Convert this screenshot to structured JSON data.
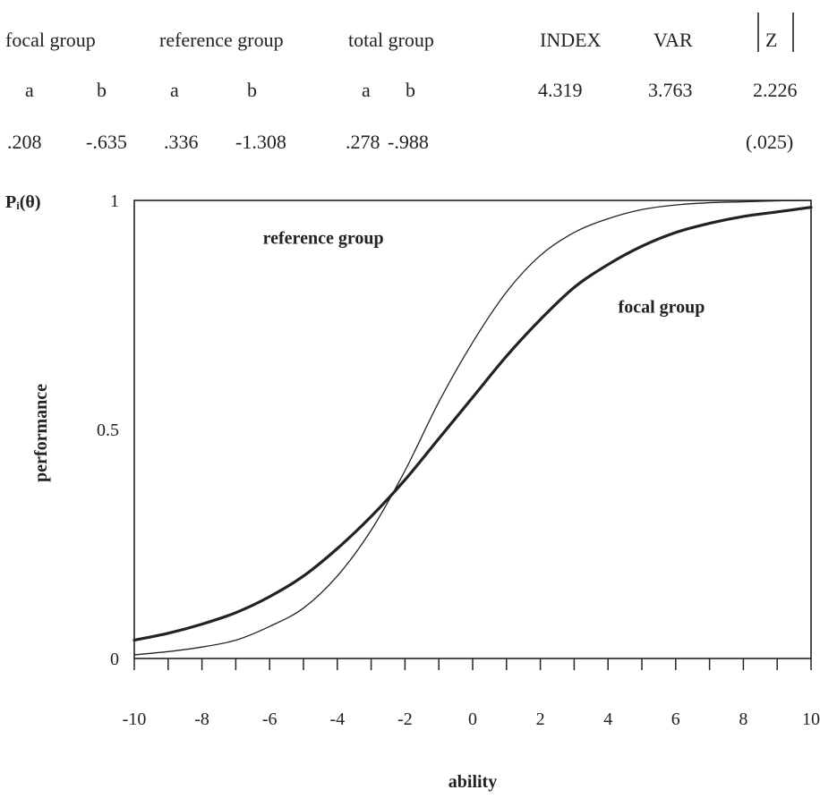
{
  "stats_table": {
    "group_headers": {
      "focal": "focal group",
      "reference": "reference group",
      "total": "total group"
    },
    "stat_headers": {
      "index": "INDEX",
      "var": "VAR",
      "z": "Z"
    },
    "param_labels": {
      "focal_a": "a",
      "focal_b": "b",
      "reference_a": "a",
      "reference_b": "b",
      "total_a": "a",
      "total_b": "b"
    },
    "param_values": {
      "focal_a": ".208",
      "focal_b": "-.635",
      "reference_a": ".336",
      "reference_b": "-1.308",
      "total_a": ".278",
      "total_b": "-.988"
    },
    "stat_values": {
      "index": "4.319",
      "var": "3.763",
      "z": "2.226",
      "p": "(.025)"
    }
  },
  "chart_data": {
    "type": "line",
    "corner_label": "Pᵢ(θ)",
    "xlabel": "ability",
    "ylabel": "performance",
    "xlim": [
      -10,
      10
    ],
    "ylim": [
      0,
      1
    ],
    "x_ticks": [
      -10,
      -9,
      -8,
      -7,
      -6,
      -5,
      -4,
      -3,
      -2,
      -1,
      0,
      1,
      2,
      3,
      4,
      5,
      6,
      7,
      8,
      9,
      10
    ],
    "x_tick_labels": [
      "-10",
      "-8",
      "-6",
      "-4",
      "-2",
      "0",
      "2",
      "4",
      "6",
      "8",
      "10"
    ],
    "y_tick_labels": [
      "0",
      "0.5",
      "1"
    ],
    "y_tick_values": [
      0,
      0.5,
      1
    ],
    "grid": false,
    "series": [
      {
        "name": "reference group",
        "line_weight": "thin",
        "x": [
          -10,
          -9,
          -8,
          -7,
          -6,
          -5,
          -4,
          -3,
          -2,
          -1,
          0,
          1,
          2,
          3,
          4,
          5,
          6,
          7,
          8,
          9,
          10
        ],
        "y": [
          0.008,
          0.015,
          0.025,
          0.04,
          0.07,
          0.11,
          0.18,
          0.28,
          0.41,
          0.56,
          0.69,
          0.8,
          0.88,
          0.93,
          0.96,
          0.98,
          0.99,
          0.995,
          0.997,
          0.999,
          1.0
        ]
      },
      {
        "name": "focal group",
        "line_weight": "thick",
        "x": [
          -10,
          -9,
          -8,
          -7,
          -6,
          -5,
          -4,
          -3,
          -2,
          -1,
          0,
          1,
          2,
          3,
          4,
          5,
          6,
          7,
          8,
          9,
          10
        ],
        "y": [
          0.04,
          0.055,
          0.075,
          0.1,
          0.135,
          0.18,
          0.24,
          0.31,
          0.39,
          0.48,
          0.57,
          0.66,
          0.74,
          0.81,
          0.86,
          0.9,
          0.93,
          0.95,
          0.965,
          0.975,
          0.985
        ]
      }
    ]
  }
}
